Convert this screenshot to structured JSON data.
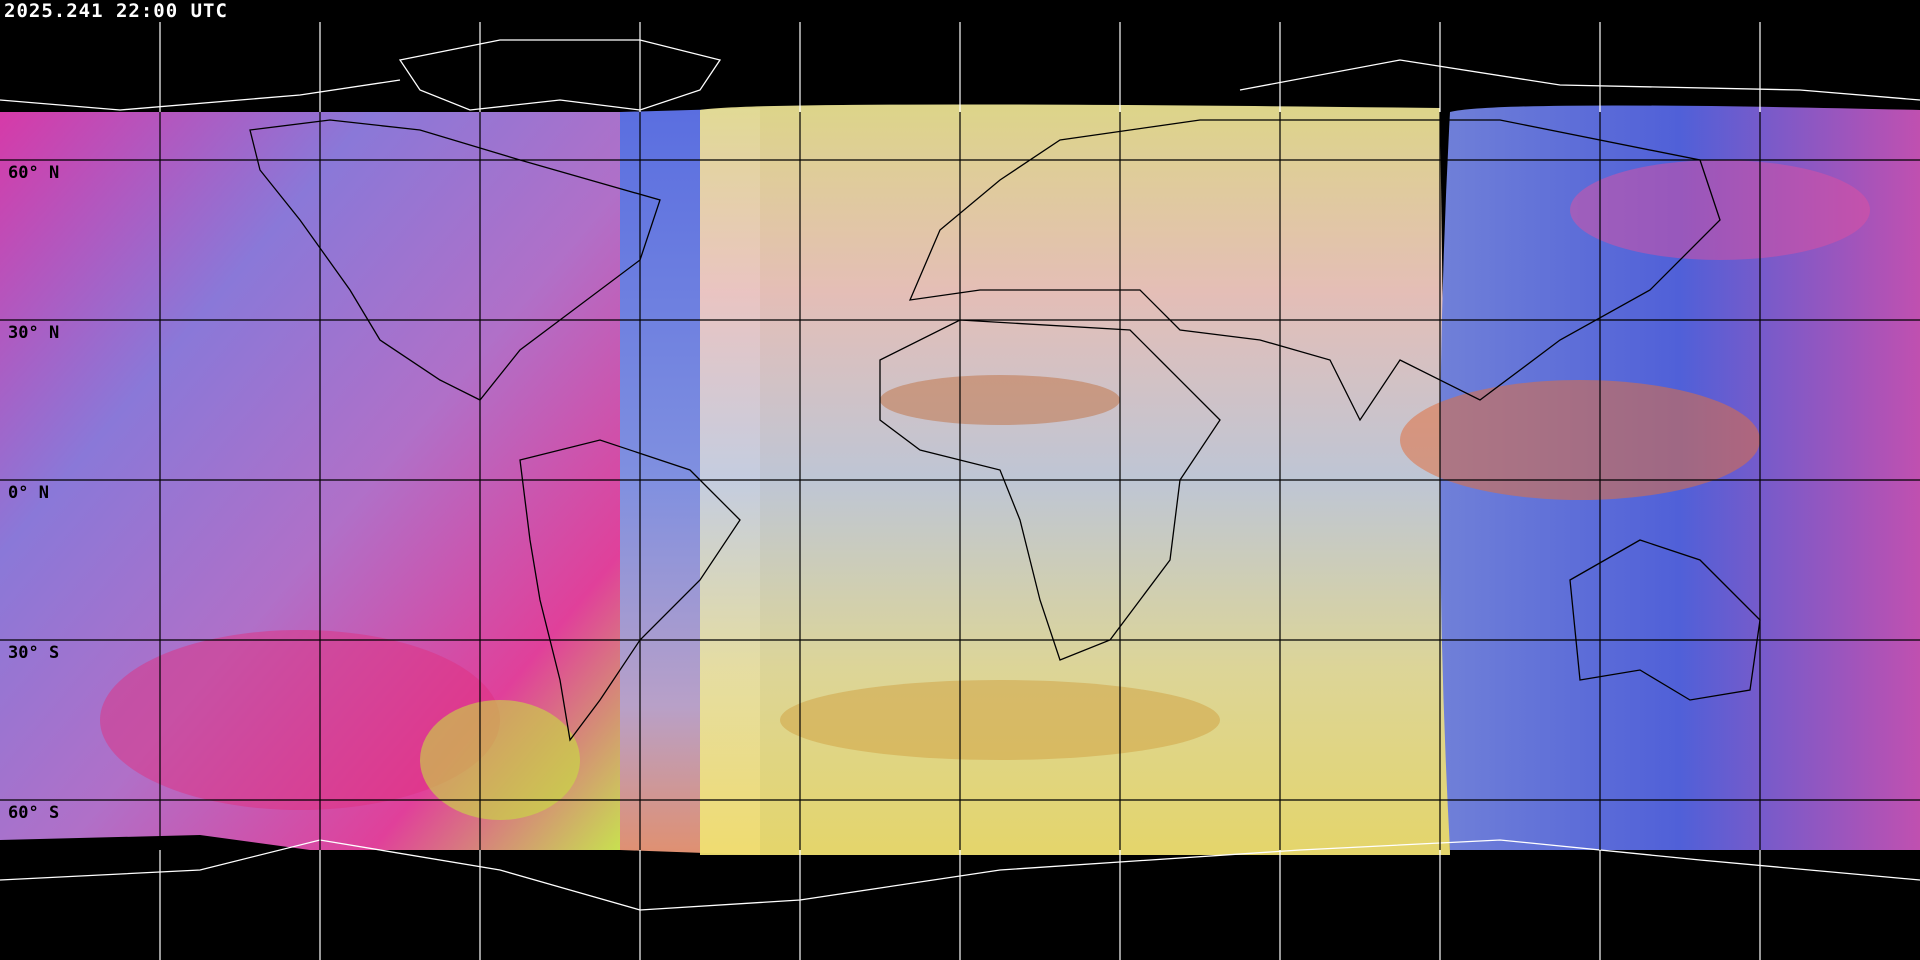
{
  "header": {
    "timestamp": "2025.241 22:00 UTC"
  },
  "grid": {
    "lat_labels": [
      "60° N",
      "30° N",
      "0° N",
      "30° S",
      "60° S"
    ],
    "lat_step_deg": 30,
    "lon_step_deg": 30
  },
  "colors": {
    "background": "#000000",
    "coastline_outside": "#ffffff",
    "coastline_inside": "#000000",
    "gridline_inside": "#000000",
    "gridline_outside": "#ffffff"
  }
}
